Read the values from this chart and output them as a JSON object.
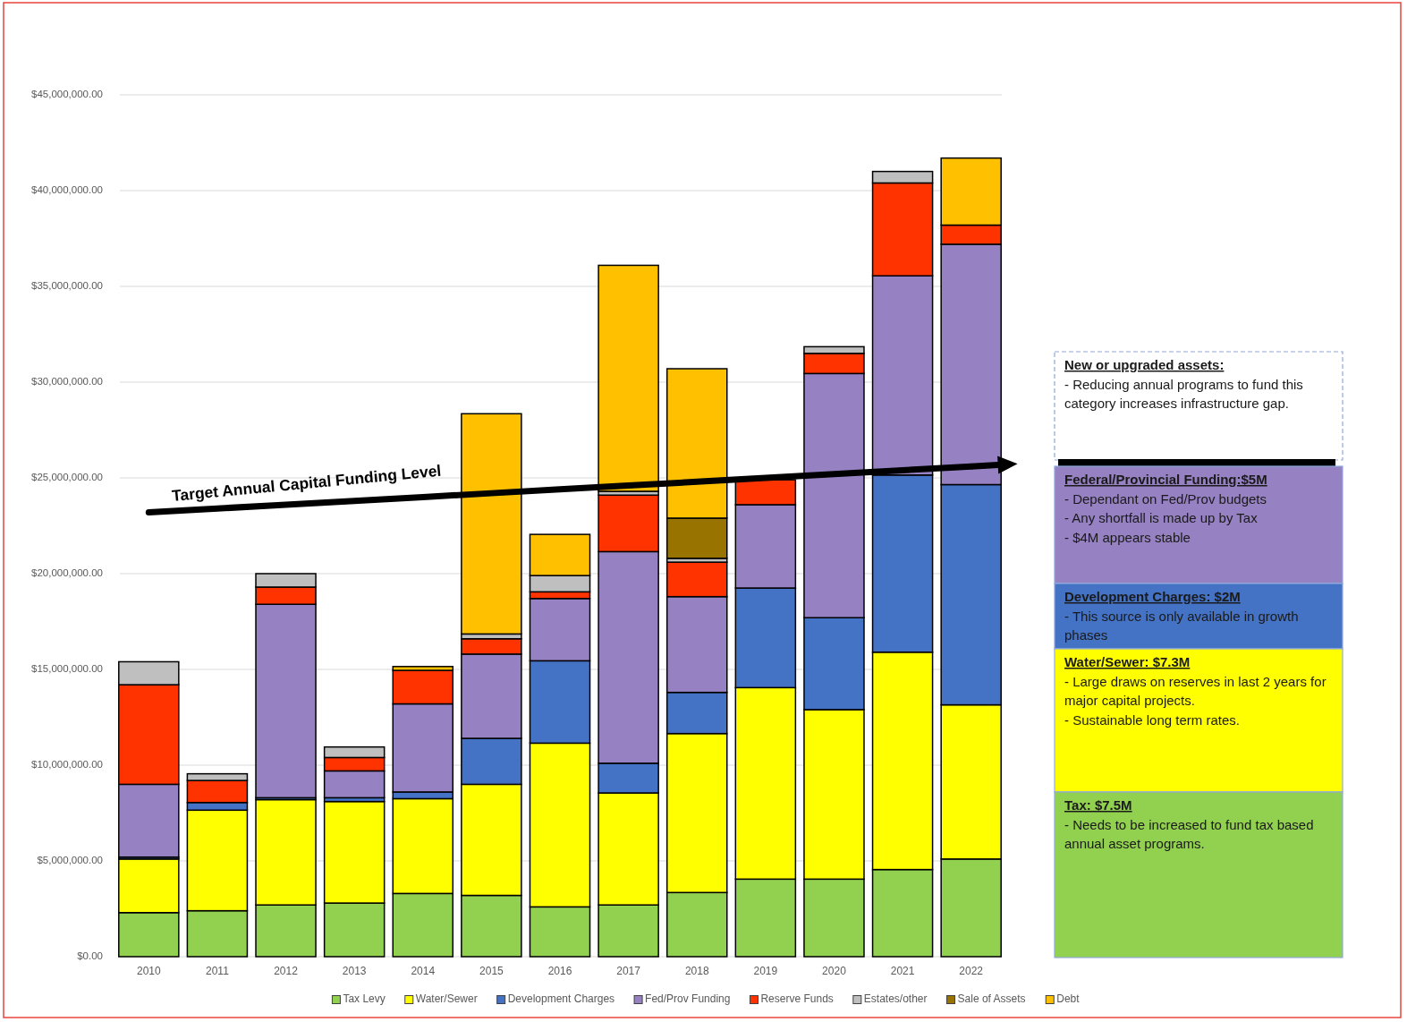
{
  "chart_data": {
    "type": "bar",
    "stacked": true,
    "categories": [
      "2010",
      "2011",
      "2012",
      "2013",
      "2014",
      "2015",
      "2016",
      "2017",
      "2018",
      "2019",
      "2020",
      "2021",
      "2022"
    ],
    "series": [
      {
        "name": "Tax Levy",
        "color": "#92d050",
        "values": [
          2300000,
          2400000,
          2700000,
          2800000,
          3300000,
          3200000,
          2600000,
          2700000,
          3350000,
          4050000,
          4050000,
          4550000,
          5100000
        ]
      },
      {
        "name": "Water/Sewer",
        "color": "#ffff00",
        "values": [
          2800000,
          5250000,
          5500000,
          5300000,
          4950000,
          5800000,
          8550000,
          5850000,
          8300000,
          10000000,
          8850000,
          11350000,
          8050000
        ]
      },
      {
        "name": "Development Charges",
        "color": "#4472c4",
        "values": [
          100000,
          400000,
          100000,
          200000,
          350000,
          2400000,
          4300000,
          1550000,
          2150000,
          5200000,
          4800000,
          9250000,
          11500000
        ]
      },
      {
        "name": "Fed/Prov Funding",
        "color": "#9681c2",
        "values": [
          3800000,
          null,
          10100000,
          1400000,
          4600000,
          4400000,
          3250000,
          11050000,
          5000000,
          4350000,
          12750000,
          10400000,
          12550000
        ]
      },
      {
        "name": "Reserve Funds",
        "color": "#ff3300",
        "values": [
          5200000,
          1150000,
          900000,
          700000,
          1750000,
          800000,
          350000,
          2950000,
          1800000,
          1300000,
          1050000,
          4850000,
          1000000
        ]
      },
      {
        "name": "Estates/other",
        "color": "#bfbfbf",
        "values": [
          1200000,
          350000,
          700000,
          550000,
          null,
          250000,
          850000,
          200000,
          200000,
          null,
          350000,
          600000,
          null
        ]
      },
      {
        "name": "Sale of Assets",
        "color": "#997300",
        "values": [
          null,
          null,
          null,
          null,
          null,
          null,
          null,
          null,
          2100000,
          null,
          null,
          null,
          null
        ]
      },
      {
        "name": "Debt",
        "color": "#ffc000",
        "values": [
          null,
          null,
          null,
          null,
          200000,
          11500000,
          2150000,
          11800000,
          7800000,
          null,
          null,
          null,
          3500000
        ]
      },
      {
        "name": "Target Annual Capital Funding Level",
        "type": "line",
        "color": "#000000",
        "values": [
          23200000,
          23400000,
          23600000,
          23800000,
          24000000,
          24200000,
          24400000,
          24600000,
          24800000,
          25000000,
          25200000,
          25400000,
          25600000
        ]
      }
    ],
    "ylim": [
      0,
      45000000
    ],
    "yticks": [
      {
        "value": 0,
        "label": "$0.00"
      },
      {
        "value": 5000000,
        "label": "$5,000,000.00"
      },
      {
        "value": 10000000,
        "label": "$10,000,000.00"
      },
      {
        "value": 15000000,
        "label": "$15,000,000.00"
      },
      {
        "value": 20000000,
        "label": "$20,000,000.00"
      },
      {
        "value": 25000000,
        "label": "$25,000,000.00"
      },
      {
        "value": 30000000,
        "label": "$30,000,000.00"
      },
      {
        "value": 35000000,
        "label": "$35,000,000.00"
      },
      {
        "value": 40000000,
        "label": "$40,000,000.00"
      },
      {
        "value": 45000000,
        "label": "$45,000,000.00"
      }
    ],
    "grid": "y",
    "legend": "bottom",
    "annotations": [
      "New or upgraded assets:\n- Reducing annual programs to fund this category increases infrastructure gap.",
      "Federal/Provincial Funding:$5M\n- Dependant on Fed/Prov budgets\n- Any shortfall is made up by Tax\n- $4M appears stable",
      "Development Charges: $2M\n- This source is only available in growth phases",
      "Water/Sewer: $7.3M\n- Large draws on reserves in last 2 years for major capital projects.\n- Sustainable long term rates.",
      "Tax: $7.5M\n- Needs to be increased to fund tax based annual asset programs."
    ]
  }
}
